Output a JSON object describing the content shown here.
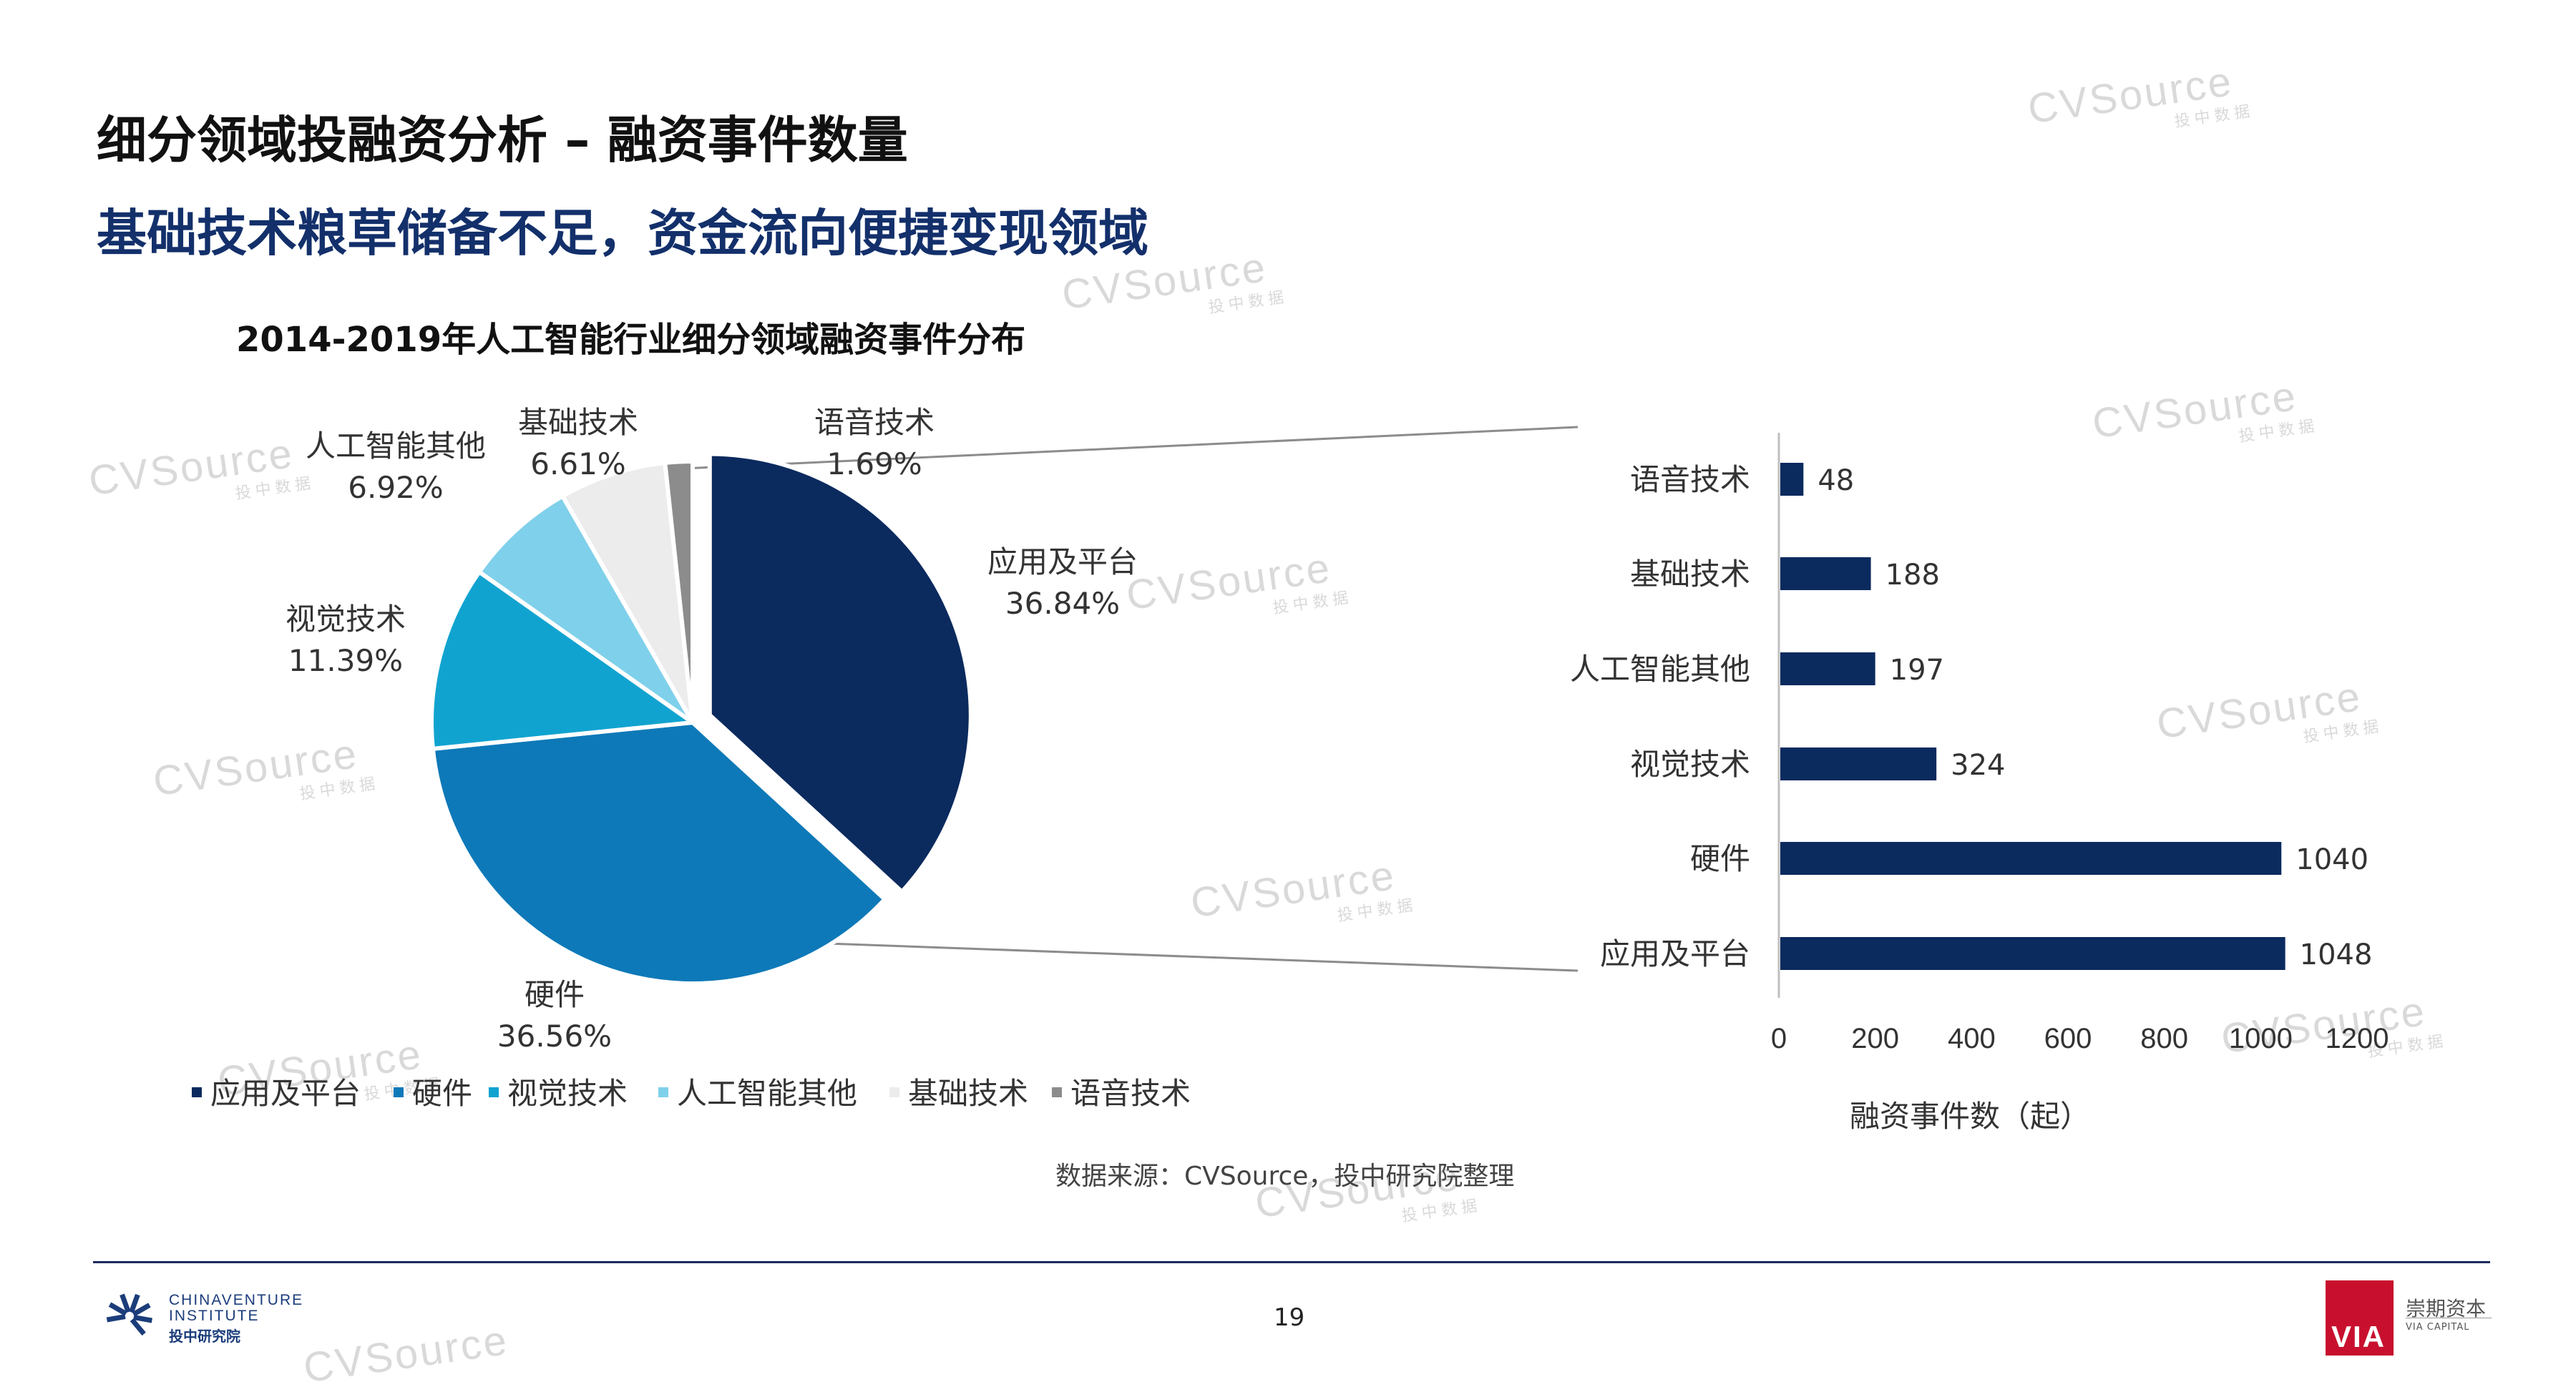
{
  "header": {
    "title": "细分领域投融资分析 – 融资事件数量",
    "subtitle": "基础技术粮草储备不足，资金流向便捷变现领域"
  },
  "chart_data": [
    {
      "type": "pie",
      "title": "2014-2019年人工智能行业细分领域融资事件分布",
      "legend_position": "bottom",
      "slices": [
        {
          "label": "应用及平台",
          "percent": "36.84%",
          "value": 36.84,
          "color": "#0b2a5e",
          "exploded": true
        },
        {
          "label": "硬件",
          "percent": "36.56%",
          "value": 36.56,
          "color": "#0e79b8"
        },
        {
          "label": "视觉技术",
          "percent": "11.39%",
          "value": 11.39,
          "color": "#11a3d0"
        },
        {
          "label": "人工智能其他",
          "percent": "6.92%",
          "value": 6.92,
          "color": "#7fd0ea"
        },
        {
          "label": "基础技术",
          "percent": "6.61%",
          "value": 6.61,
          "color": "#ececec"
        },
        {
          "label": "语音技术",
          "percent": "1.69%",
          "value": 1.69,
          "color": "#8c8c8c"
        }
      ]
    },
    {
      "type": "bar",
      "orientation": "horizontal",
      "categories": [
        "语音技术",
        "基础技术",
        "人工智能其他",
        "视觉技术",
        "硬件",
        "应用及平台"
      ],
      "values": [
        48,
        188,
        197,
        324,
        1040,
        1048
      ],
      "xlabel": "融资事件数（起）",
      "xlim": [
        0,
        1200
      ],
      "xticks": [
        "0",
        "200",
        "400",
        "600",
        "800",
        "1000",
        "1200"
      ],
      "bar_color": "#0b2a5e",
      "grid": false
    }
  ],
  "source": "数据来源：CVSource，投中研究院整理",
  "page_number": "19",
  "logos": {
    "left": {
      "line1": "CHINAVENTURE",
      "line2": "INSTITUTE",
      "line3": "投中研究院"
    },
    "right": {
      "mark": "VIA",
      "cn": "崇期资本",
      "en": "VIA CAPITAL"
    }
  },
  "watermark": {
    "main": "CVSource",
    "sub": "投中数据"
  }
}
